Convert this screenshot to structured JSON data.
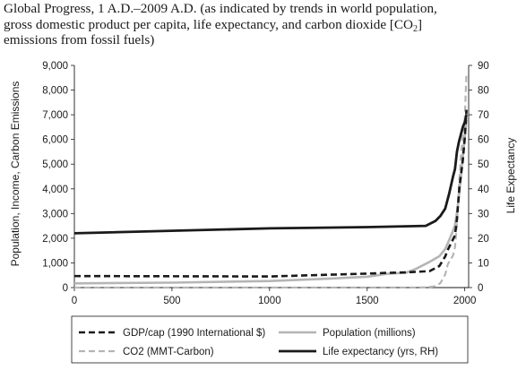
{
  "title": {
    "line1": "Global Progress, 1 A.D.–2009 A.D. (as indicated by trends in world population,",
    "line2": "gross domestic product per capita, life expectancy, and carbon dioxide [CO",
    "line2_sub": "2",
    "line2_end": "]",
    "line3": "emissions from fossil fuels)"
  },
  "chart_data": {
    "type": "line",
    "ylabel": "Population, Income, Carbon Emissions",
    "y2label": "Life Expectancy",
    "xlim": [
      0,
      2020
    ],
    "ylim": [
      0,
      9000
    ],
    "y2lim": [
      0,
      90
    ],
    "xticks": [
      "0",
      "500",
      "1000",
      "1500",
      "2000"
    ],
    "xtick_values": [
      0,
      500,
      1000,
      1500,
      2000
    ],
    "yticks": [
      "0",
      "1,000",
      "2,000",
      "3,000",
      "4,000",
      "5,000",
      "6,000",
      "7,000",
      "8,000",
      "9,000"
    ],
    "ytick_values": [
      0,
      1000,
      2000,
      3000,
      4000,
      5000,
      6000,
      7000,
      8000,
      9000
    ],
    "y2ticks": [
      "0",
      "10",
      "20",
      "30",
      "40",
      "50",
      "60",
      "70",
      "80",
      "90"
    ],
    "y2tick_values": [
      0,
      10,
      20,
      30,
      40,
      50,
      60,
      70,
      80,
      90
    ],
    "grid": false,
    "legend_position": "bottom",
    "series": [
      {
        "name": "GDP/cap (1990 International $)",
        "axis": "left",
        "color": "#1a1a1a",
        "style": "dashed",
        "width": 2.6,
        "points": [
          [
            0,
            467
          ],
          [
            1000,
            450
          ],
          [
            1500,
            566
          ],
          [
            1600,
            596
          ],
          [
            1700,
            615
          ],
          [
            1820,
            667
          ],
          [
            1870,
            873
          ],
          [
            1900,
            1262
          ],
          [
            1913,
            1526
          ],
          [
            1940,
            1958
          ],
          [
            1950,
            2113
          ],
          [
            1960,
            2773
          ],
          [
            1973,
            4091
          ],
          [
            1990,
            5150
          ],
          [
            2000,
            6038
          ],
          [
            2009,
            7200
          ]
        ]
      },
      {
        "name": "Population (millions)",
        "axis": "left",
        "color": "#b5b5b5",
        "style": "solid",
        "width": 2.6,
        "points": [
          [
            0,
            170
          ],
          [
            500,
            200
          ],
          [
            1000,
            265
          ],
          [
            1300,
            360
          ],
          [
            1500,
            438
          ],
          [
            1600,
            556
          ],
          [
            1700,
            603
          ],
          [
            1750,
            760
          ],
          [
            1820,
            1041
          ],
          [
            1870,
            1272
          ],
          [
            1900,
            1563
          ],
          [
            1913,
            1791
          ],
          [
            1940,
            2300
          ],
          [
            1950,
            2526
          ],
          [
            1960,
            3040
          ],
          [
            1970,
            3700
          ],
          [
            1980,
            4450
          ],
          [
            1990,
            5300
          ],
          [
            2000,
            6100
          ],
          [
            2009,
            6800
          ]
        ]
      },
      {
        "name": "CO2 (MMT-Carbon)",
        "axis": "left",
        "color": "#b5b5b5",
        "style": "dashed",
        "width": 2.2,
        "points": [
          [
            0,
            0
          ],
          [
            1750,
            3
          ],
          [
            1800,
            8
          ],
          [
            1850,
            54
          ],
          [
            1875,
            180
          ],
          [
            1900,
            534
          ],
          [
            1913,
            943
          ],
          [
            1940,
            1300
          ],
          [
            1950,
            1630
          ],
          [
            1960,
            2577
          ],
          [
            1970,
            4076
          ],
          [
            1980,
            5300
          ],
          [
            1990,
            6150
          ],
          [
            2000,
            6750
          ],
          [
            2005,
            7900
          ],
          [
            2009,
            8700
          ]
        ]
      },
      {
        "name": "Life expectancy (yrs, RH)",
        "axis": "right",
        "color": "#1a1a1a",
        "style": "solid",
        "width": 2.8,
        "points": [
          [
            0,
            22
          ],
          [
            1000,
            24
          ],
          [
            1500,
            24.5
          ],
          [
            1800,
            25
          ],
          [
            1850,
            27
          ],
          [
            1875,
            29
          ],
          [
            1900,
            32
          ],
          [
            1920,
            38
          ],
          [
            1940,
            45
          ],
          [
            1950,
            48
          ],
          [
            1960,
            55
          ],
          [
            1970,
            59
          ],
          [
            1980,
            62
          ],
          [
            1990,
            65
          ],
          [
            2000,
            67
          ],
          [
            2009,
            70
          ]
        ]
      }
    ]
  }
}
